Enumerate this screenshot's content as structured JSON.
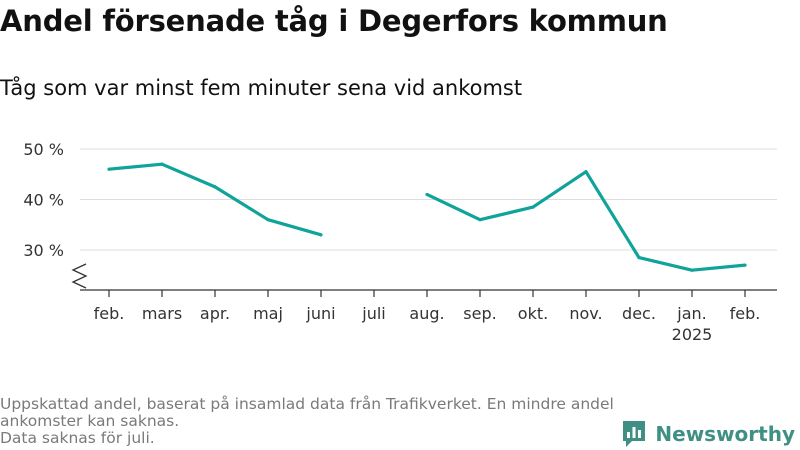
{
  "header": {
    "title": "Andel försenade tåg i Degerfors kommun",
    "subtitle": "Tåg som var minst fem minuter sena vid ankomst"
  },
  "footer": {
    "line1": "Uppskattad andel, baserat på insamlad data från Trafikverket. En mindre andel ankomster kan saknas.",
    "line2": "Data saknas för juli."
  },
  "brand": {
    "name": "Newsworthy",
    "icon": "newsworthy-logo-icon",
    "color": "#3f8f84"
  },
  "chart_data": {
    "type": "line",
    "title": "Andel försenade tåg i Degerfors kommun",
    "subtitle": "Tåg som var minst fem minuter sena vid ankomst",
    "categories": [
      "feb.",
      "mars",
      "apr.",
      "maj",
      "juni",
      "juli",
      "aug.",
      "sep.",
      "okt.",
      "nov.",
      "dec.",
      "jan.",
      "feb."
    ],
    "category_sublabels": [
      "",
      "",
      "",
      "",
      "",
      "",
      "",
      "",
      "",
      "",
      "",
      "2025",
      ""
    ],
    "series": [
      {
        "values": [
          46,
          47,
          42.5,
          36,
          33,
          null,
          41,
          36,
          38.5,
          45.5,
          28.5,
          26,
          27
        ],
        "color": "#0fa39a"
      }
    ],
    "yticks": [
      30,
      40,
      50
    ],
    "ytick_labels": [
      "30 %",
      "40 %",
      "50 %"
    ],
    "ylim": [
      22,
      50
    ],
    "y_axis_break": true,
    "grid": true,
    "legend": "none"
  }
}
